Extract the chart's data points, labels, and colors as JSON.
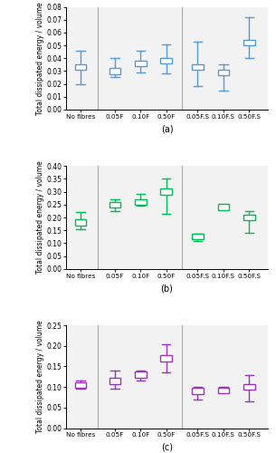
{
  "categories": [
    "No fibres",
    "0.05F",
    "0.10F",
    "0.50F",
    "0.05F.S",
    "0.10F.S",
    "0.50F.S"
  ],
  "panels": [
    {
      "label": "(a)",
      "color": "#5599dd",
      "ylim": [
        0.0,
        0.08
      ],
      "yticks": [
        0.0,
        0.01,
        0.02,
        0.03,
        0.04,
        0.05,
        0.06,
        0.07,
        0.08
      ],
      "centers": [
        0.033,
        0.03,
        0.036,
        0.038,
        0.033,
        0.029,
        0.052
      ],
      "upper_err": [
        0.013,
        0.01,
        0.01,
        0.013,
        0.02,
        0.006,
        0.02
      ],
      "lower_err": [
        0.013,
        0.005,
        0.007,
        0.01,
        0.015,
        0.014,
        0.012
      ]
    },
    {
      "label": "(b)",
      "color": "#00bb55",
      "ylim": [
        0.0,
        0.4
      ],
      "yticks": [
        0.0,
        0.05,
        0.1,
        0.15,
        0.2,
        0.25,
        0.3,
        0.35,
        0.4
      ],
      "centers": [
        0.18,
        0.25,
        0.26,
        0.3,
        0.125,
        0.24,
        0.2
      ],
      "upper_err": [
        0.04,
        0.02,
        0.03,
        0.05,
        0.01,
        0.005,
        0.025
      ],
      "lower_err": [
        0.025,
        0.025,
        0.015,
        0.085,
        0.015,
        0.005,
        0.06
      ]
    },
    {
      "label": "(c)",
      "color": "#9933bb",
      "ylim": [
        0.0,
        0.25
      ],
      "yticks": [
        0.0,
        0.05,
        0.1,
        0.15,
        0.2,
        0.25
      ],
      "centers": [
        0.105,
        0.115,
        0.13,
        0.17,
        0.09,
        0.092,
        0.1
      ],
      "upper_err": [
        0.01,
        0.025,
        0.01,
        0.035,
        0.01,
        0.008,
        0.03
      ],
      "lower_err": [
        0.01,
        0.02,
        0.015,
        0.035,
        0.02,
        0.005,
        0.035
      ]
    }
  ],
  "ylabel": "Total dissipated energy / volume",
  "fig_bg": "#f0f0f0"
}
